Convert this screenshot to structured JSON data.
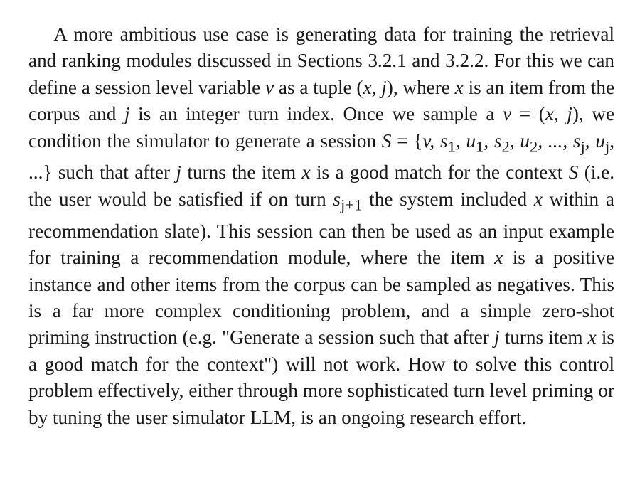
{
  "paragraph": {
    "segments": [
      "A more ambitious use case is generating data for training the retrieval and ranking modules discussed in Sections 3.2.1 and 3.2.2. For this we can define a session level variable ",
      "v",
      " as a tuple (",
      "x",
      ", ",
      "j",
      "), where ",
      "x",
      " is an item from the corpus and ",
      "j",
      " is an integer turn index. Once we sample a ",
      "v",
      " = (",
      "x",
      ", ",
      "j",
      "), we condition the simulator to gen­erate a session ",
      "S",
      " = {",
      "v, s",
      "1",
      ", u",
      "1",
      ", s",
      "2",
      ", u",
      "2",
      ", ..., s",
      "j",
      ", u",
      "j",
      ", ...} such that after ",
      "j",
      " turns the item ",
      "x",
      " is a good match for the context ",
      "S",
      " (i.e. the user would be satisfied if on turn ",
      "s",
      "j+1",
      " the system included ",
      "x",
      " within a recommendation slate). This session can then be used as an input example for training a recommendation module, where the item ",
      "x",
      " is a positive instance and other items from the corpus can be sampled as negatives. This is a far more complex conditioning problem, and a simple zero-shot priming instruction (e.g. \"Generate a session such that after ",
      "j",
      " turns item ",
      "x",
      " is a good match for the context\") will not work. How to solve this control problem effectively, either through more sophisticated turn level priming or by tuning the user simulator LLM, is an ongoing research effort."
    ]
  }
}
